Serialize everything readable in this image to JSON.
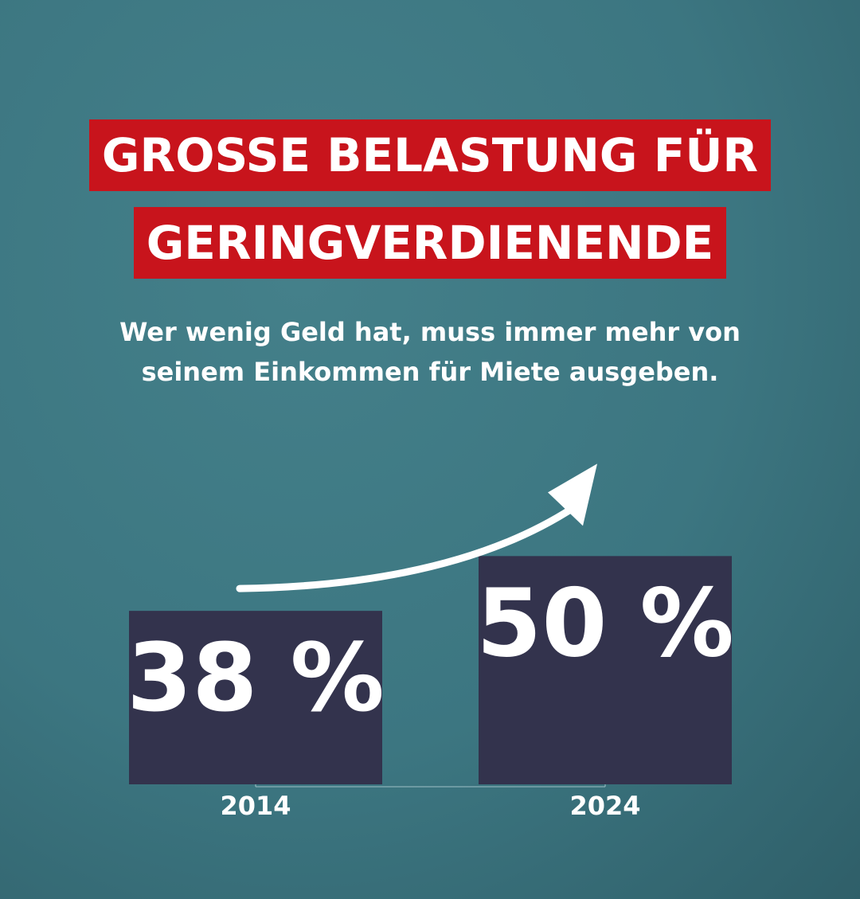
{
  "header": {
    "title_line1": "GROSSE BELASTUNG FÜR",
    "title_line2": "GERINGVERDIENENDE",
    "subtitle_line1": "Wer wenig Geld hat, muss immer mehr von",
    "subtitle_line2": "seinem Einkommen für Miete ausgeben."
  },
  "colors": {
    "title_background": "#c8141c",
    "bar": "#33334d",
    "text": "#ffffff"
  },
  "chart_data": {
    "type": "bar",
    "title": "GROSSE BELASTUNG FÜR GERINGVERDIENENDE",
    "subtitle": "Wer wenig Geld hat, muss immer mehr von seinem Einkommen für Miete ausgeben.",
    "categories": [
      "2014",
      "2024"
    ],
    "values": [
      38,
      50
    ],
    "value_labels": [
      "38 %",
      "50 %"
    ],
    "unit": "%",
    "ylim": [
      0,
      75
    ],
    "grid": false,
    "legend": "none",
    "annotations": [
      "upward-arrow"
    ]
  }
}
